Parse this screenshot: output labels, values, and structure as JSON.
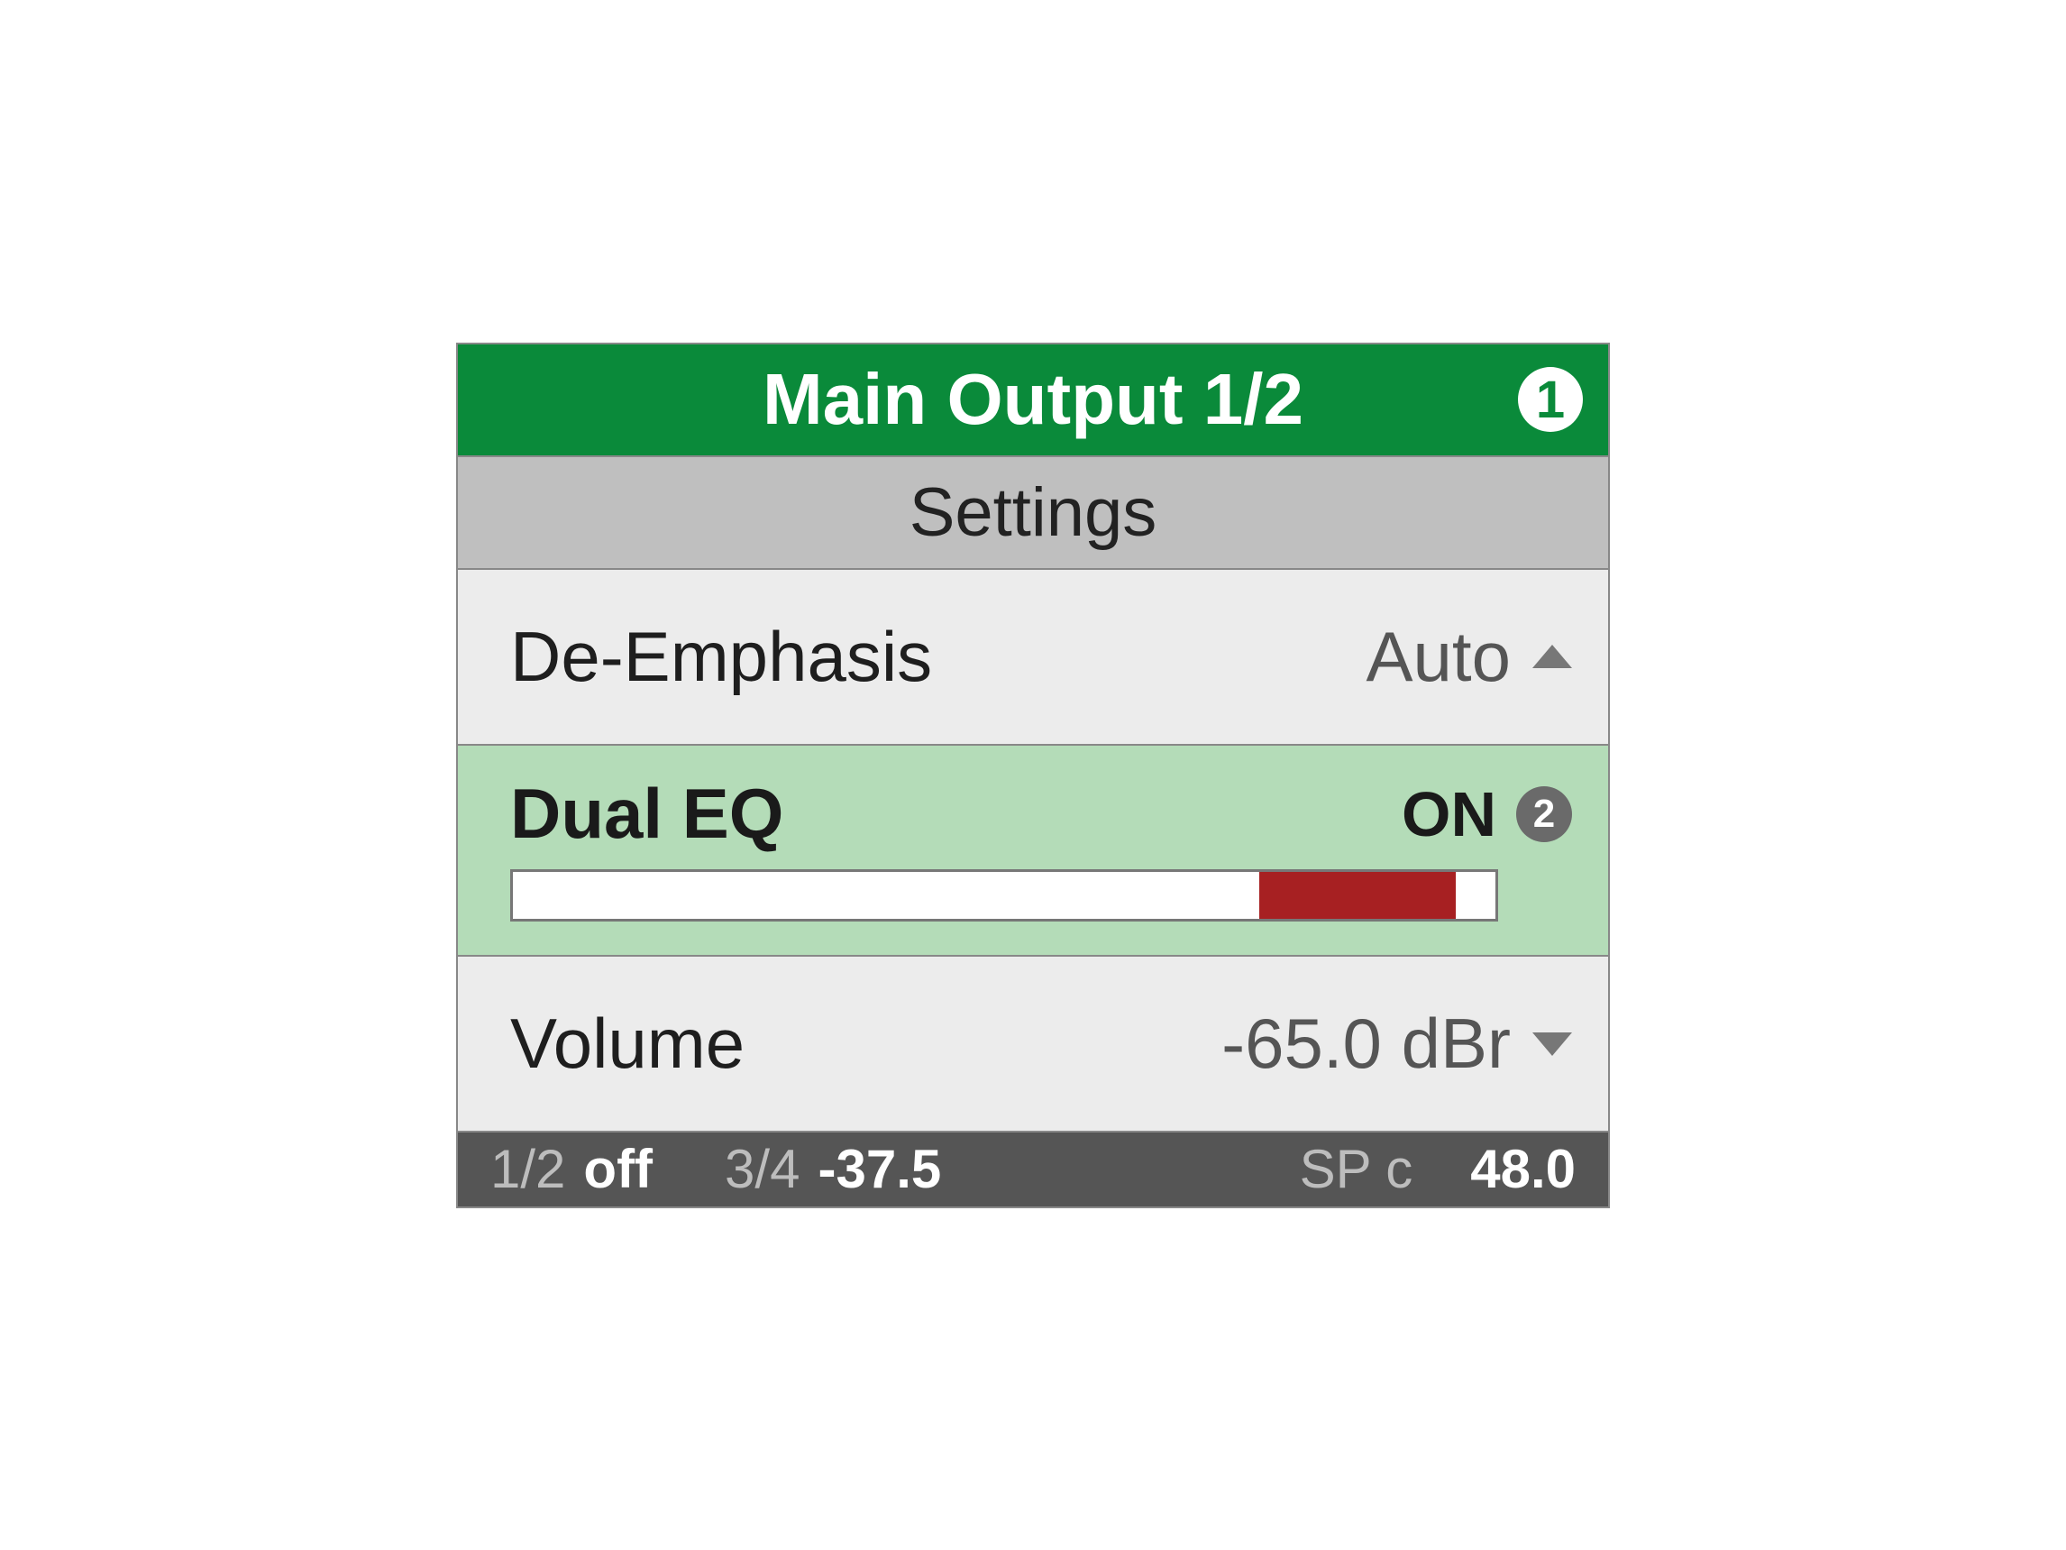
{
  "colors": {
    "header_bg": "#0a8a3a",
    "header_text": "#ffffff",
    "subheader_bg": "#bfbfbf",
    "row_bg": "#ececec",
    "selected_bg": "#b4dcb8",
    "slider_fill": "#a72022",
    "slider_border": "#777777",
    "status_bg": "#555555",
    "status_dim": "#bdbdbd",
    "badge_bg": "#6a6a6a"
  },
  "header": {
    "title": "Main Output 1/2",
    "badge": "1"
  },
  "subheader": "Settings",
  "rows": {
    "deemphasis": {
      "label": "De-Emphasis",
      "value": "Auto"
    },
    "dualeq": {
      "label": "Dual EQ",
      "value": "ON",
      "step_badge": "2",
      "slider": {
        "fill_start_pct": 76,
        "fill_end_pct": 96
      }
    },
    "volume": {
      "label": "Volume",
      "value": "-65.0 dBr"
    }
  },
  "status": {
    "a_label": "1/2",
    "a_value": "off",
    "b_label": "3/4",
    "b_value": "-37.5",
    "c_label": "SP c",
    "c_value": "48.0"
  }
}
